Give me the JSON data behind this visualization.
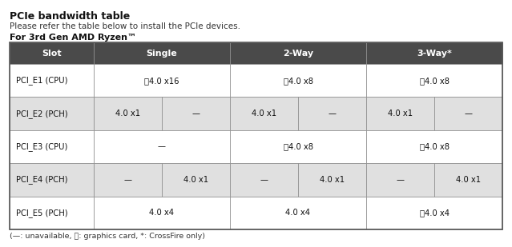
{
  "title": "PCIe bandwidth table",
  "subtitle": "Please refer the table below to install the PCIe devices.",
  "section_label": "For 3rd Gen AMD Ryzen™",
  "footnote": "(—: unavailable, Ⓕ: graphics card, *: CrossFire only)",
  "header_bg": "#4a4a4a",
  "header_fg": "#ffffff",
  "row_bg_even": "#ffffff",
  "row_bg_odd": "#e0e0e0",
  "border_color": "#888888",
  "rows": [
    {
      "slot": "PCI_E1 (CPU)",
      "cells": [
        "Ⓕ4.0 x16",
        "",
        "Ⓕ4.0 x8",
        "",
        "Ⓕ4.0 x8",
        ""
      ],
      "merged": [
        true,
        true,
        true
      ]
    },
    {
      "slot": "PCI_E2 (PCH)",
      "cells": [
        "4.0 x1",
        "—",
        "4.0 x1",
        "—",
        "4.0 x1",
        "—"
      ],
      "merged": [
        false,
        false,
        false
      ]
    },
    {
      "slot": "PCI_E3 (CPU)",
      "cells": [
        "—",
        "",
        "Ⓕ4.0 x8",
        "",
        "Ⓕ4.0 x8",
        ""
      ],
      "merged": [
        true,
        true,
        true
      ]
    },
    {
      "slot": "PCI_E4 (PCH)",
      "cells": [
        "—",
        "4.0 x1",
        "—",
        "4.0 x1",
        "—",
        "4.0 x1"
      ],
      "merged": [
        false,
        false,
        false
      ]
    },
    {
      "slot": "PCI_E5 (PCH)",
      "cells": [
        "4.0 x4",
        "",
        "4.0 x4",
        "",
        "Ⓕ4.0 x4",
        ""
      ],
      "merged": [
        true,
        true,
        true
      ]
    }
  ]
}
